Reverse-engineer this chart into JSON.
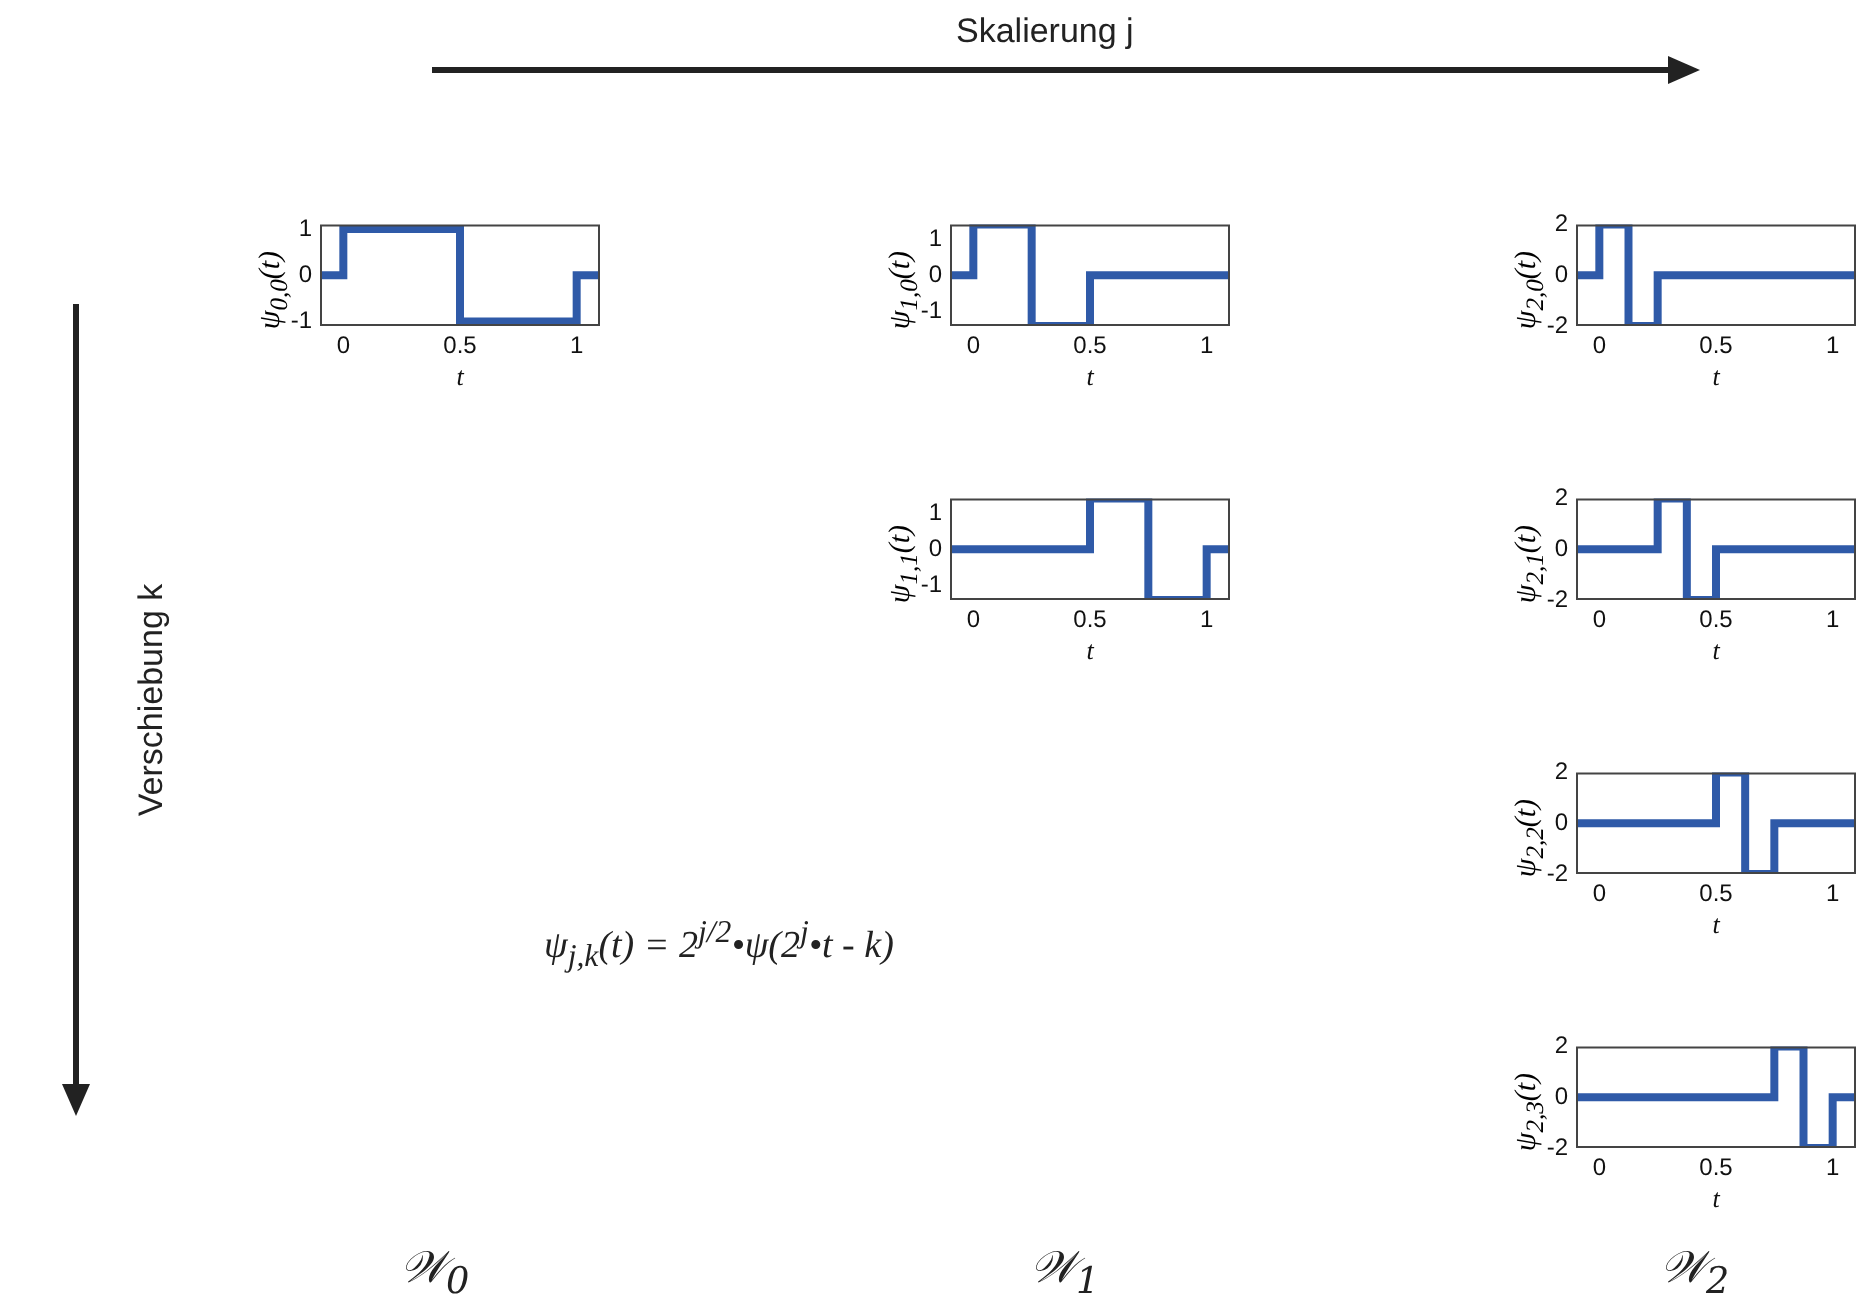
{
  "chart_data": [
    {
      "type": "step",
      "xlabel": "t",
      "ylabel": "ψ$_{0,0}$(t)",
      "xlim": [
        -0.1,
        1.1
      ],
      "xticks": [
        0,
        0.5,
        1
      ],
      "ylim": [
        -1.1,
        1.1
      ],
      "yticks": [
        -1,
        0,
        1
      ],
      "grid": false,
      "legend": false,
      "series": [
        {
          "color": "#2f5aa8",
          "x": [
            -0.1,
            0,
            0.5,
            1,
            1.1
          ],
          "values": [
            0,
            1,
            -1,
            0,
            0
          ]
        }
      ]
    },
    {
      "type": "step",
      "xlabel": "t",
      "ylabel": "ψ$_{1,0}$(t)",
      "xlim": [
        -0.1,
        1.1
      ],
      "xticks": [
        0,
        0.5,
        1
      ],
      "ylim": [
        -1.41,
        1.41
      ],
      "yticks": [
        -1,
        0,
        1
      ],
      "grid": false,
      "legend": false,
      "series": [
        {
          "color": "#2f5aa8",
          "x": [
            -0.1,
            0,
            0.25,
            0.5,
            1.1
          ],
          "values": [
            0,
            1.41,
            -1.41,
            0,
            0
          ]
        }
      ]
    },
    {
      "type": "step",
      "xlabel": "t",
      "ylabel": "ψ$_{2,0}$(t)",
      "xlim": [
        -0.1,
        1.1
      ],
      "xticks": [
        0,
        0.5,
        1
      ],
      "ylim": [
        -2,
        2
      ],
      "yticks": [
        -2,
        0,
        2
      ],
      "grid": false,
      "legend": false,
      "series": [
        {
          "color": "#2f5aa8",
          "x": [
            -0.1,
            0,
            0.125,
            0.25,
            1.1
          ],
          "values": [
            0,
            2,
            -2,
            0,
            0
          ]
        }
      ]
    },
    {
      "type": "step",
      "xlabel": "t",
      "ylabel": "ψ$_{1,1}$(t)",
      "xlim": [
        -0.1,
        1.1
      ],
      "xticks": [
        0,
        0.5,
        1
      ],
      "ylim": [
        -1.41,
        1.41
      ],
      "yticks": [
        -1,
        0,
        1
      ],
      "grid": false,
      "legend": false,
      "series": [
        {
          "color": "#2f5aa8",
          "x": [
            -0.1,
            0.5,
            0.75,
            1,
            1.1
          ],
          "values": [
            0,
            1.41,
            -1.41,
            0,
            0
          ]
        }
      ]
    },
    {
      "type": "step",
      "xlabel": "t",
      "ylabel": "ψ$_{2,1}$(t)",
      "xlim": [
        -0.1,
        1.1
      ],
      "xticks": [
        0,
        0.5,
        1
      ],
      "ylim": [
        -2,
        2
      ],
      "yticks": [
        -2,
        0,
        2
      ],
      "grid": false,
      "legend": false,
      "series": [
        {
          "color": "#2f5aa8",
          "x": [
            -0.1,
            0.25,
            0.375,
            0.5,
            1.1
          ],
          "values": [
            0,
            2,
            -2,
            0,
            0
          ]
        }
      ]
    },
    {
      "type": "step",
      "xlabel": "t",
      "ylabel": "ψ$_{2,2}$(t)",
      "xlim": [
        -0.1,
        1.1
      ],
      "xticks": [
        0,
        0.5,
        1
      ],
      "ylim": [
        -2,
        2
      ],
      "yticks": [
        -2,
        0,
        2
      ],
      "grid": false,
      "legend": false,
      "series": [
        {
          "color": "#2f5aa8",
          "x": [
            -0.1,
            0.5,
            0.625,
            0.75,
            1.1
          ],
          "values": [
            0,
            2,
            -2,
            0,
            0
          ]
        }
      ]
    },
    {
      "type": "step",
      "xlabel": "t",
      "ylabel": "ψ$_{2,3}$(t)",
      "xlim": [
        -0.1,
        1.1
      ],
      "xticks": [
        0,
        0.5,
        1
      ],
      "ylim": [
        -2,
        2
      ],
      "yticks": [
        -2,
        0,
        2
      ],
      "grid": false,
      "legend": false,
      "series": [
        {
          "color": "#2f5aa8",
          "x": [
            -0.1,
            0.75,
            0.875,
            1,
            1.1
          ],
          "values": [
            0,
            2,
            -2,
            0,
            0
          ]
        }
      ]
    },
    {
      "type": "other",
      "annotations": [
        "Skalierung j",
        "Verschiebung k",
        "ψ$_{j,k}$(t) = 2$^{j/2}$•ψ(2$^{j}$•t - k)",
        "𝒲$_{0}$",
        "𝒲$_{1}$",
        "𝒲$_{2}$"
      ]
    }
  ]
}
